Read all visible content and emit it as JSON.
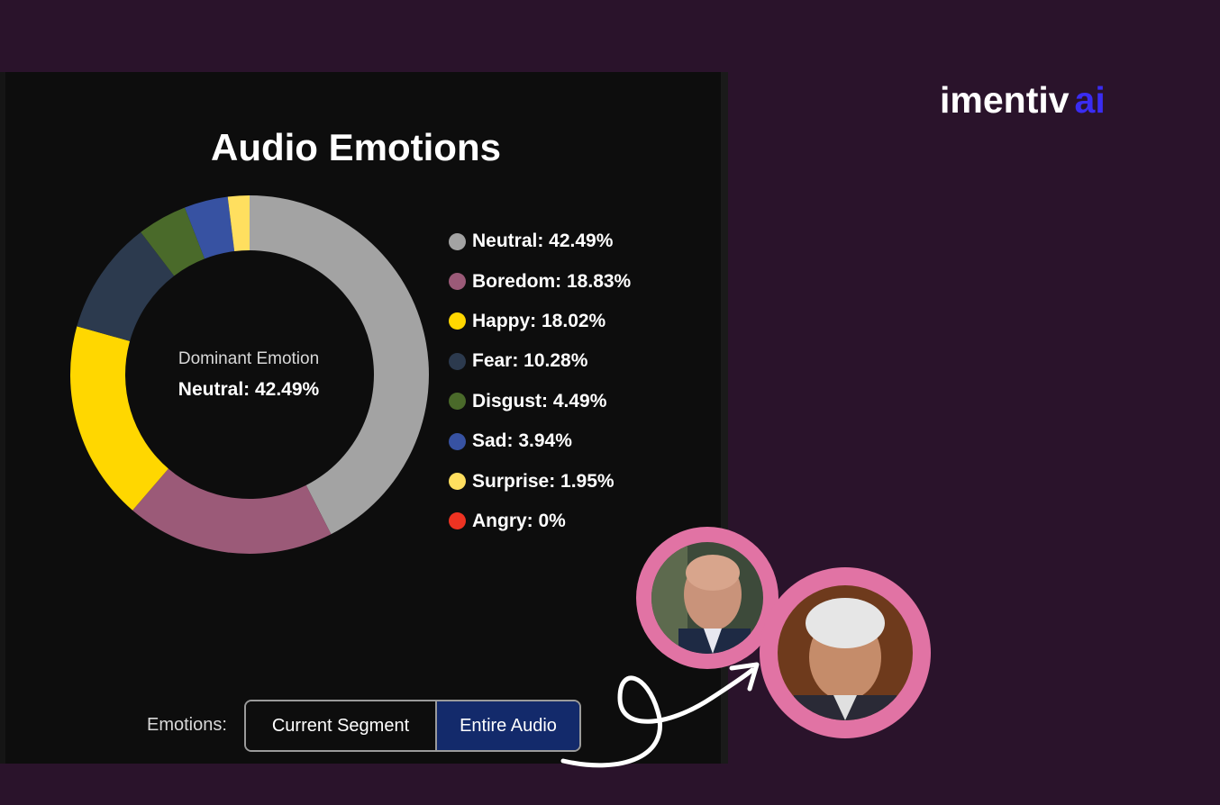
{
  "brand": {
    "name": "imentiv",
    "suffix": "ai"
  },
  "chart_data": {
    "type": "pie",
    "title": "Audio Emotions",
    "center": {
      "label": "Dominant Emotion",
      "value": "Neutral: 42.49%"
    },
    "categories": [
      "Neutral",
      "Boredom",
      "Happy",
      "Fear",
      "Disgust",
      "Sad",
      "Surprise",
      "Angry"
    ],
    "values": [
      42.49,
      18.83,
      18.02,
      10.28,
      4.49,
      3.94,
      1.95,
      0
    ],
    "colors": [
      "#a3a3a3",
      "#9b5a78",
      "#ffd700",
      "#2c3a4e",
      "#4a6a2a",
      "#3752a2",
      "#ffdf5f",
      "#ee3322"
    ],
    "legend_labels": [
      "Neutral: 42.49%",
      "Boredom: 18.83%",
      "Happy: 18.02%",
      "Fear: 10.28%",
      "Disgust: 4.49%",
      "Sad: 3.94%",
      "Surprise: 1.95%",
      "Angry: 0%"
    ],
    "legend_position": "right"
  },
  "controls": {
    "label": "Emotions:",
    "options": [
      "Current Segment",
      "Entire Audio"
    ],
    "selected": "Entire Audio"
  },
  "avatars": [
    {
      "name": "person-bald-avatar"
    },
    {
      "name": "person-white-hair-avatar"
    }
  ]
}
